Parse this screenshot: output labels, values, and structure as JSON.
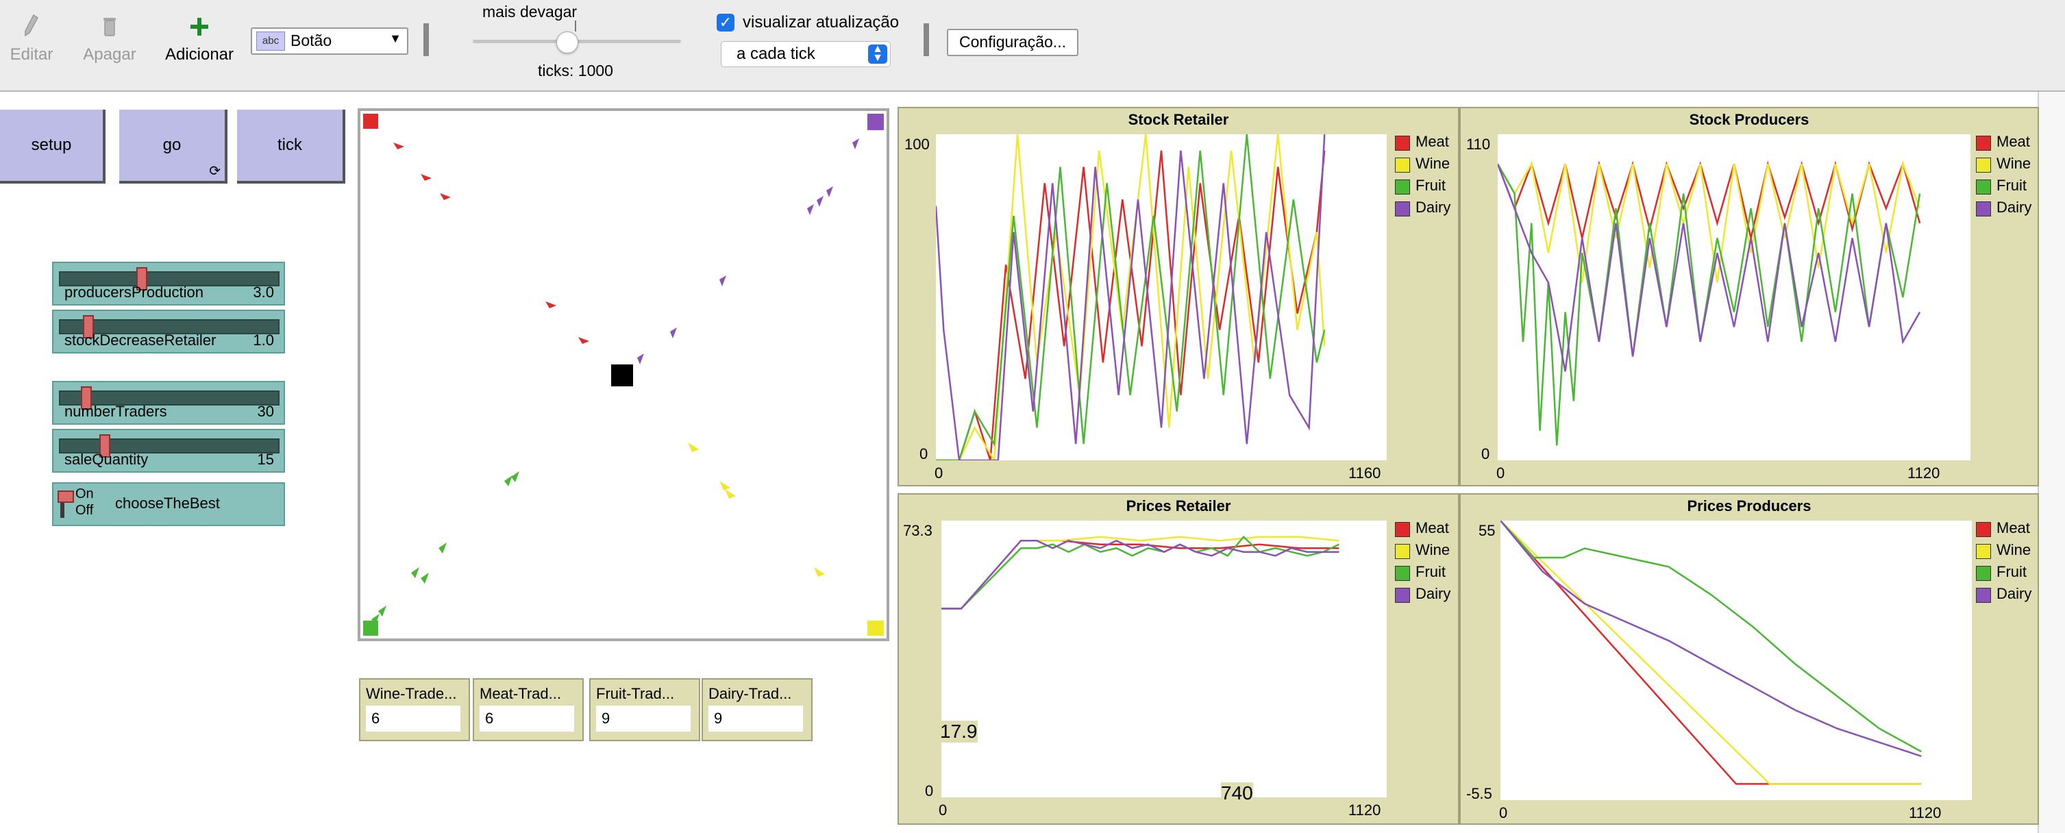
{
  "toolbar": {
    "edit_label": "Editar",
    "delete_label": "Apagar",
    "add_label": "Adicionar",
    "widget_type": "Botão",
    "widget_type_icon": "abc",
    "speed_label": "mais devagar",
    "speed_value": 0.45,
    "ticks_label": "ticks: 1000",
    "view_updates_label": "visualizar atualização",
    "view_updates_checked": true,
    "update_mode": "a cada tick",
    "settings_label": "Configuração..."
  },
  "buttons": {
    "setup": "setup",
    "go": "go",
    "tick": "tick"
  },
  "sliders": [
    {
      "name": "producersProduction",
      "value": "3.0",
      "level": 0.37
    },
    {
      "name": "stockDecreaseRetailer",
      "value": "1.0",
      "level": 0.11
    },
    {
      "name": "numberTraders",
      "value": "30",
      "level": 0.1
    },
    {
      "name": "saleQuantity",
      "value": "15",
      "level": 0.19
    }
  ],
  "switch": {
    "name": "chooseTheBest",
    "on_label": "On",
    "off_label": "Off"
  },
  "monitors": [
    {
      "label": "Wine-Trade...",
      "value": "6"
    },
    {
      "label": "Meat-Trad...",
      "value": "6"
    },
    {
      "label": "Fruit-Trad...",
      "value": "9"
    },
    {
      "label": "Dairy-Trad...",
      "value": "9"
    }
  ],
  "colors": {
    "meat": "#e02a2a",
    "wine": "#f0e82a",
    "fruit": "#4ab834",
    "dairy": "#8a52b8",
    "button": "#bcbce6",
    "slider": "#88c1bb",
    "plot_bg": "#dedeb2"
  },
  "chart_data": [
    {
      "type": "line",
      "title": "Stock Retailer",
      "ylim_labels": [
        "100",
        "0"
      ],
      "xlim_labels": [
        "0",
        "1160"
      ],
      "xlim": [
        0,
        1160
      ],
      "ylim": [
        0,
        100
      ],
      "series": [
        {
          "name": "Meat",
          "color": "#e02a2a",
          "x": [
            0,
            60,
            100,
            140,
            180,
            230,
            280,
            330,
            380,
            430,
            480,
            530,
            580,
            630,
            680,
            730,
            780,
            830,
            880,
            930,
            980,
            1000
          ],
          "y": [
            0,
            0,
            15,
            0,
            60,
            25,
            85,
            35,
            90,
            30,
            80,
            35,
            95,
            20,
            85,
            40,
            75,
            30,
            90,
            45,
            70,
            95
          ]
        },
        {
          "name": "Wine",
          "color": "#f0e82a",
          "x": [
            0,
            60,
            100,
            150,
            210,
            260,
            310,
            370,
            420,
            480,
            540,
            600,
            650,
            700,
            760,
            820,
            880,
            930,
            980,
            1000
          ],
          "y": [
            0,
            0,
            10,
            0,
            100,
            30,
            70,
            20,
            95,
            40,
            100,
            10,
            90,
            25,
            95,
            30,
            100,
            40,
            70,
            35
          ]
        },
        {
          "name": "Fruit",
          "color": "#4ab834",
          "x": [
            0,
            60,
            100,
            150,
            200,
            260,
            320,
            380,
            440,
            500,
            560,
            620,
            680,
            740,
            800,
            860,
            920,
            980,
            1000
          ],
          "y": [
            0,
            0,
            15,
            5,
            75,
            10,
            90,
            5,
            85,
            20,
            75,
            15,
            95,
            20,
            100,
            25,
            80,
            30,
            40
          ]
        },
        {
          "name": "Dairy",
          "color": "#8a52b8",
          "x": [
            0,
            20,
            60,
            100,
            160,
            200,
            250,
            300,
            360,
            410,
            470,
            520,
            580,
            630,
            690,
            740,
            800,
            850,
            910,
            960,
            1000
          ],
          "y": [
            78,
            40,
            0,
            0,
            0,
            70,
            15,
            85,
            5,
            90,
            20,
            80,
            10,
            95,
            25,
            85,
            5,
            70,
            20,
            10,
            100
          ]
        }
      ]
    },
    {
      "type": "line",
      "title": "Stock Producers",
      "ylim_labels": [
        "110",
        "0"
      ],
      "xlim_labels": [
        "0",
        "1120"
      ],
      "xlim": [
        0,
        1120
      ],
      "ylim": [
        0,
        110
      ],
      "series": [
        {
          "name": "Meat",
          "color": "#e02a2a",
          "x": [
            0,
            40,
            80,
            120,
            160,
            200,
            240,
            280,
            320,
            360,
            400,
            440,
            480,
            520,
            560,
            600,
            640,
            680,
            720,
            760,
            800,
            840,
            880,
            920,
            960,
            1000
          ],
          "y": [
            100,
            85,
            100,
            80,
            100,
            75,
            100,
            82,
            100,
            78,
            100,
            85,
            100,
            80,
            100,
            75,
            100,
            82,
            100,
            80,
            100,
            78,
            100,
            85,
            100,
            80
          ]
        },
        {
          "name": "Wine",
          "color": "#f0e82a",
          "x": [
            0,
            40,
            80,
            120,
            160,
            200,
            240,
            280,
            320,
            360,
            400,
            440,
            480,
            520,
            560,
            600,
            640,
            680,
            720,
            760,
            800,
            840,
            880,
            920,
            960,
            1000
          ],
          "y": [
            100,
            90,
            100,
            70,
            100,
            60,
            100,
            75,
            100,
            65,
            100,
            80,
            100,
            60,
            100,
            70,
            100,
            75,
            100,
            65,
            100,
            80,
            100,
            70,
            100,
            85
          ]
        },
        {
          "name": "Fruit",
          "color": "#4ab834",
          "x": [
            0,
            40,
            60,
            80,
            100,
            120,
            140,
            160,
            180,
            200,
            240,
            280,
            320,
            360,
            400,
            440,
            480,
            520,
            560,
            600,
            640,
            680,
            720,
            760,
            800,
            840,
            880,
            920,
            960,
            1000
          ],
          "y": [
            100,
            90,
            40,
            80,
            10,
            60,
            5,
            50,
            20,
            70,
            40,
            85,
            35,
            80,
            45,
            90,
            40,
            75,
            50,
            85,
            45,
            80,
            40,
            85,
            50,
            90,
            45,
            80,
            55,
            90
          ]
        },
        {
          "name": "Dairy",
          "color": "#8a52b8",
          "x": [
            0,
            40,
            80,
            120,
            160,
            200,
            240,
            280,
            320,
            360,
            400,
            440,
            480,
            520,
            560,
            600,
            640,
            680,
            720,
            760,
            800,
            840,
            880,
            920,
            960,
            1000
          ],
          "y": [
            100,
            85,
            70,
            60,
            30,
            75,
            40,
            80,
            35,
            75,
            45,
            80,
            40,
            70,
            45,
            75,
            40,
            80,
            45,
            70,
            40,
            75,
            45,
            80,
            40,
            50
          ]
        }
      ]
    },
    {
      "type": "line",
      "title": "Prices Retailer",
      "ylim_labels": [
        "73.3",
        "0"
      ],
      "xlim_labels": [
        "0",
        "1120"
      ],
      "xlim": [
        0,
        1120
      ],
      "ylim": [
        0,
        73.3
      ],
      "annotations": [
        "17.9",
        "740"
      ],
      "series": [
        {
          "name": "Meat",
          "color": "#e02a2a",
          "x": [
            0,
            50,
            200,
            300,
            400,
            500,
            600,
            700,
            800,
            900,
            1000
          ],
          "y": [
            50,
            50,
            68,
            68,
            67,
            67,
            66,
            66,
            67,
            66,
            66
          ]
        },
        {
          "name": "Wine",
          "color": "#f0e82a",
          "x": [
            0,
            50,
            200,
            300,
            400,
            500,
            600,
            700,
            800,
            900,
            1000
          ],
          "y": [
            50,
            50,
            68,
            68,
            69,
            68,
            69,
            68,
            69,
            69,
            68
          ]
        },
        {
          "name": "Fruit",
          "color": "#4ab834",
          "x": [
            0,
            50,
            200,
            240,
            280,
            320,
            360,
            400,
            440,
            480,
            520,
            560,
            600,
            640,
            680,
            720,
            760,
            800,
            840,
            880,
            920,
            960,
            1000
          ],
          "y": [
            50,
            50,
            66,
            66,
            67,
            65,
            67,
            65,
            66,
            64,
            66,
            65,
            67,
            65,
            66,
            64,
            69,
            65,
            66,
            65,
            64,
            65,
            67
          ]
        },
        {
          "name": "Dairy",
          "color": "#8a52b8",
          "x": [
            0,
            50,
            200,
            240,
            280,
            320,
            360,
            400,
            440,
            480,
            520,
            560,
            600,
            640,
            680,
            720,
            760,
            800,
            840,
            880,
            920,
            960,
            1000
          ],
          "y": [
            50,
            50,
            68,
            68,
            66,
            68,
            67,
            66,
            68,
            66,
            67,
            65,
            67,
            65,
            64,
            66,
            65,
            65,
            64,
            66,
            65,
            65,
            65
          ]
        }
      ]
    },
    {
      "type": "line",
      "title": "Prices Producers",
      "ylim_labels": [
        "55",
        "-5.5"
      ],
      "xlim_labels": [
        "0",
        "1120"
      ],
      "xlim": [
        0,
        1120
      ],
      "ylim": [
        -5.5,
        55
      ],
      "series": [
        {
          "name": "Meat",
          "color": "#e02a2a",
          "x": [
            0,
            560,
            650,
            1000
          ],
          "y": [
            55,
            -2,
            -2,
            -2
          ]
        },
        {
          "name": "Wine",
          "color": "#f0e82a",
          "x": [
            0,
            640,
            700,
            1000
          ],
          "y": [
            55,
            -2,
            -2,
            -2
          ]
        },
        {
          "name": "Fruit",
          "color": "#4ab834",
          "x": [
            0,
            80,
            150,
            200,
            300,
            400,
            500,
            600,
            700,
            800,
            900,
            1000
          ],
          "y": [
            55,
            47,
            47,
            49,
            47,
            45,
            39,
            32,
            24,
            17,
            10,
            5
          ]
        },
        {
          "name": "Dairy",
          "color": "#8a52b8",
          "x": [
            0,
            100,
            200,
            300,
            400,
            500,
            600,
            700,
            800,
            900,
            1000
          ],
          "y": [
            55,
            44,
            37,
            33,
            29,
            24,
            19,
            14,
            10,
            7,
            4
          ]
        }
      ]
    }
  ]
}
